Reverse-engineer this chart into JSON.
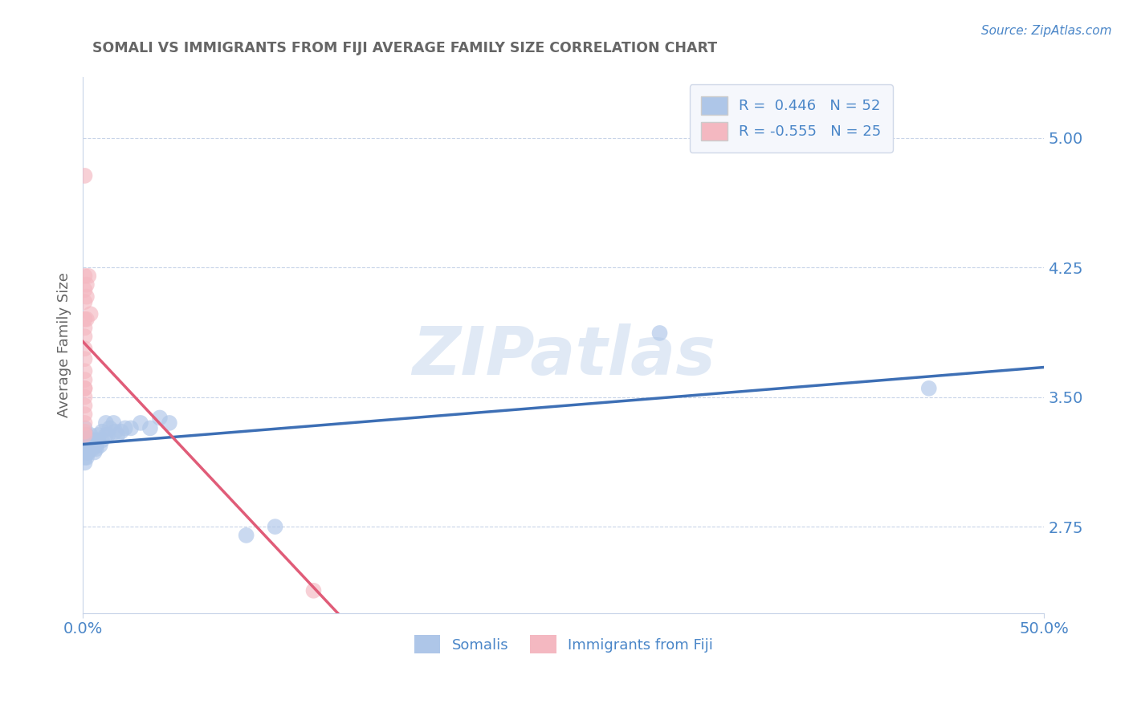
{
  "title": "SOMALI VS IMMIGRANTS FROM FIJI AVERAGE FAMILY SIZE CORRELATION CHART",
  "ylabel": "Average Family Size",
  "source_text": "Source: ZipAtlas.com",
  "xlim": [
    0.0,
    0.5
  ],
  "ylim": [
    2.25,
    5.35
  ],
  "yticks": [
    2.75,
    3.5,
    4.25,
    5.0
  ],
  "xticks": [
    0.0,
    0.5
  ],
  "xtick_labels": [
    "0.0%",
    "50.0%"
  ],
  "watermark": "ZIPatlas",
  "legend_entries": [
    {
      "label": "R =  0.446   N = 52",
      "color": "#aec6e8"
    },
    {
      "label": "R = -0.555   N = 25",
      "color": "#f4b8c1"
    }
  ],
  "somali_points": [
    [
      0.001,
      3.22
    ],
    [
      0.001,
      3.25
    ],
    [
      0.001,
      3.28
    ],
    [
      0.001,
      3.32
    ],
    [
      0.001,
      3.18
    ],
    [
      0.001,
      3.2
    ],
    [
      0.001,
      3.15
    ],
    [
      0.001,
      3.12
    ],
    [
      0.002,
      3.18
    ],
    [
      0.002,
      3.22
    ],
    [
      0.002,
      3.25
    ],
    [
      0.002,
      3.28
    ],
    [
      0.002,
      3.15
    ],
    [
      0.002,
      3.2
    ],
    [
      0.003,
      3.2
    ],
    [
      0.003,
      3.22
    ],
    [
      0.003,
      3.25
    ],
    [
      0.003,
      3.18
    ],
    [
      0.004,
      3.22
    ],
    [
      0.004,
      3.25
    ],
    [
      0.004,
      3.28
    ],
    [
      0.005,
      3.2
    ],
    [
      0.005,
      3.25
    ],
    [
      0.005,
      3.22
    ],
    [
      0.006,
      3.18
    ],
    [
      0.006,
      3.22
    ],
    [
      0.006,
      3.25
    ],
    [
      0.007,
      3.22
    ],
    [
      0.007,
      3.2
    ],
    [
      0.008,
      3.25
    ],
    [
      0.008,
      3.28
    ],
    [
      0.009,
      3.22
    ],
    [
      0.01,
      3.3
    ],
    [
      0.01,
      3.25
    ],
    [
      0.012,
      3.28
    ],
    [
      0.012,
      3.35
    ],
    [
      0.013,
      3.28
    ],
    [
      0.014,
      3.32
    ],
    [
      0.016,
      3.35
    ],
    [
      0.017,
      3.3
    ],
    [
      0.018,
      3.28
    ],
    [
      0.02,
      3.3
    ],
    [
      0.022,
      3.32
    ],
    [
      0.025,
      3.32
    ],
    [
      0.03,
      3.35
    ],
    [
      0.035,
      3.32
    ],
    [
      0.04,
      3.38
    ],
    [
      0.045,
      3.35
    ],
    [
      0.085,
      2.7
    ],
    [
      0.1,
      2.75
    ],
    [
      0.3,
      3.87
    ],
    [
      0.44,
      3.55
    ]
  ],
  "fiji_points": [
    [
      0.001,
      4.78
    ],
    [
      0.001,
      4.2
    ],
    [
      0.001,
      4.12
    ],
    [
      0.001,
      4.05
    ],
    [
      0.001,
      3.95
    ],
    [
      0.001,
      3.9
    ],
    [
      0.001,
      3.85
    ],
    [
      0.001,
      3.78
    ],
    [
      0.001,
      3.72
    ],
    [
      0.001,
      3.65
    ],
    [
      0.001,
      3.6
    ],
    [
      0.001,
      3.55
    ],
    [
      0.001,
      3.5
    ],
    [
      0.001,
      3.45
    ],
    [
      0.001,
      3.4
    ],
    [
      0.001,
      3.35
    ],
    [
      0.001,
      3.3
    ],
    [
      0.001,
      3.28
    ],
    [
      0.002,
      4.15
    ],
    [
      0.002,
      4.08
    ],
    [
      0.002,
      3.95
    ],
    [
      0.003,
      4.2
    ],
    [
      0.004,
      3.98
    ],
    [
      0.12,
      2.38
    ],
    [
      0.001,
      3.55
    ]
  ],
  "somali_color": "#aec6e8",
  "somali_line_color": "#3d6fb5",
  "fiji_color": "#f4b8c1",
  "fiji_line_color": "#e05c78",
  "background_color": "#ffffff",
  "grid_color": "#c8d4e8",
  "title_color": "#666666",
  "axis_color": "#4a86c8",
  "watermark_color": "#c8d8ee",
  "legend_box_color": "#f5f7fc",
  "legend_border_color": "#d0d8e8"
}
